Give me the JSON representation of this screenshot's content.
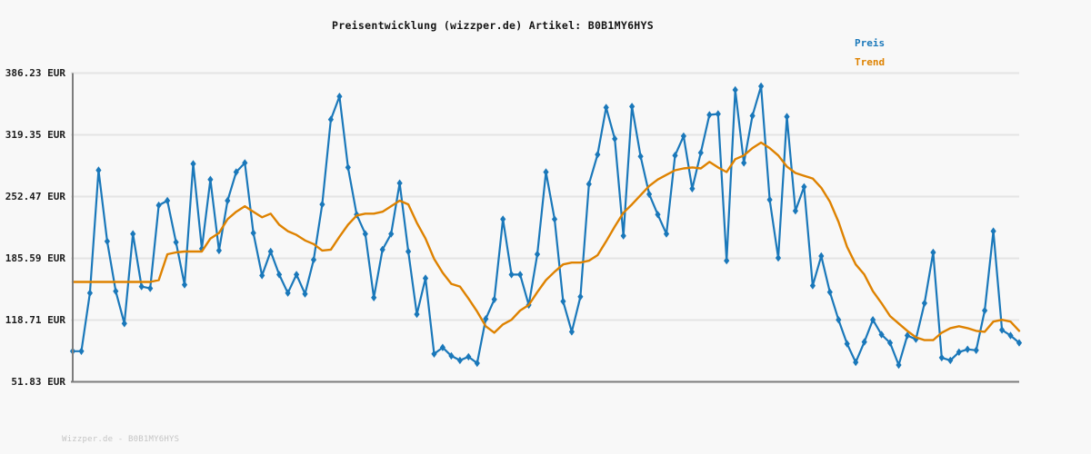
{
  "title": "Preisentwicklung (wizzper.de) Artikel: B0B1MY6HYS",
  "legend": {
    "items": [
      {
        "label": "Preis",
        "color": "#1a78ba"
      },
      {
        "label": "Trend",
        "color": "#de8200"
      }
    ]
  },
  "footer": "Wizzper.de - B0B1MY6HYS",
  "colors": {
    "price": "#1a78ba",
    "trend": "#de8200",
    "grid": "#e4e4e4",
    "axis": "#7d7d7d",
    "background": "#f8f8f8",
    "title_text": "#141414",
    "tick_text": "#1c1c1c",
    "footer_text": "#c5c5c5"
  },
  "chart_data": {
    "type": "line",
    "title": "Preisentwicklung (wizzper.de) Artikel: B0B1MY6HYS",
    "xlabel": "",
    "ylabel": "",
    "y_unit": "EUR",
    "ylim": [
      51.83,
      386.23
    ],
    "y_ticks": [
      386.23,
      319.35,
      252.47,
      185.59,
      118.71,
      51.83
    ],
    "y_tick_labels": [
      "386.23 EUR",
      "319.35 EUR",
      "252.47 EUR",
      "185.59 EUR",
      "118.71 EUR",
      "51.83 EUR"
    ],
    "x_tick_labels": [],
    "grid": "horizontal-only",
    "legend_position": "top-right",
    "series": [
      {
        "name": "Preis",
        "color": "#1a78ba",
        "marker": "diamond",
        "values": [
          85,
          85,
          148,
          281,
          204,
          150,
          115,
          212,
          155,
          153,
          243,
          248,
          203,
          157,
          288,
          196,
          271,
          194,
          248,
          279,
          289,
          213,
          167,
          193,
          168,
          148,
          168,
          147,
          184,
          244,
          336,
          361,
          284,
          233,
          212,
          143,
          195,
          212,
          267,
          193,
          125,
          164,
          82,
          89,
          80,
          75,
          79,
          72,
          120,
          141,
          228,
          168,
          168,
          135,
          190,
          279,
          228,
          139,
          106,
          144,
          266,
          298,
          349,
          315,
          210,
          350,
          296,
          255,
          233,
          212,
          297,
          318,
          261,
          300,
          341,
          342,
          183,
          368,
          289,
          340,
          372,
          249,
          186,
          339,
          237,
          263,
          156,
          188,
          149,
          119,
          93,
          73,
          95,
          119,
          103,
          94,
          70,
          102,
          98,
          137,
          192,
          78,
          75,
          84,
          87,
          86,
          129,
          215,
          108,
          102,
          94
        ]
      },
      {
        "name": "Trend",
        "color": "#de8200",
        "marker": "none",
        "values": [
          160,
          160,
          160,
          160,
          160,
          160,
          160,
          160,
          160,
          160,
          162,
          190,
          192,
          193,
          193,
          193,
          207,
          213,
          228,
          236,
          242,
          236,
          230,
          234,
          222,
          215,
          211,
          205,
          201,
          194,
          195,
          209,
          222,
          232,
          234,
          234,
          236,
          242,
          248,
          244,
          224,
          207,
          185,
          170,
          158,
          155,
          142,
          128,
          112,
          105,
          114,
          119,
          129,
          135,
          149,
          162,
          171,
          179,
          181,
          181,
          183,
          189,
          204,
          220,
          235,
          244,
          254,
          264,
          271,
          276,
          281,
          283,
          284,
          283,
          290,
          284,
          279,
          293,
          297,
          305,
          311,
          305,
          297,
          285,
          278,
          275,
          272,
          262,
          247,
          225,
          198,
          179,
          168,
          150,
          137,
          123,
          115,
          107,
          100,
          97,
          97,
          105,
          110,
          112,
          110,
          107,
          106,
          117,
          119,
          117,
          107
        ]
      }
    ]
  }
}
